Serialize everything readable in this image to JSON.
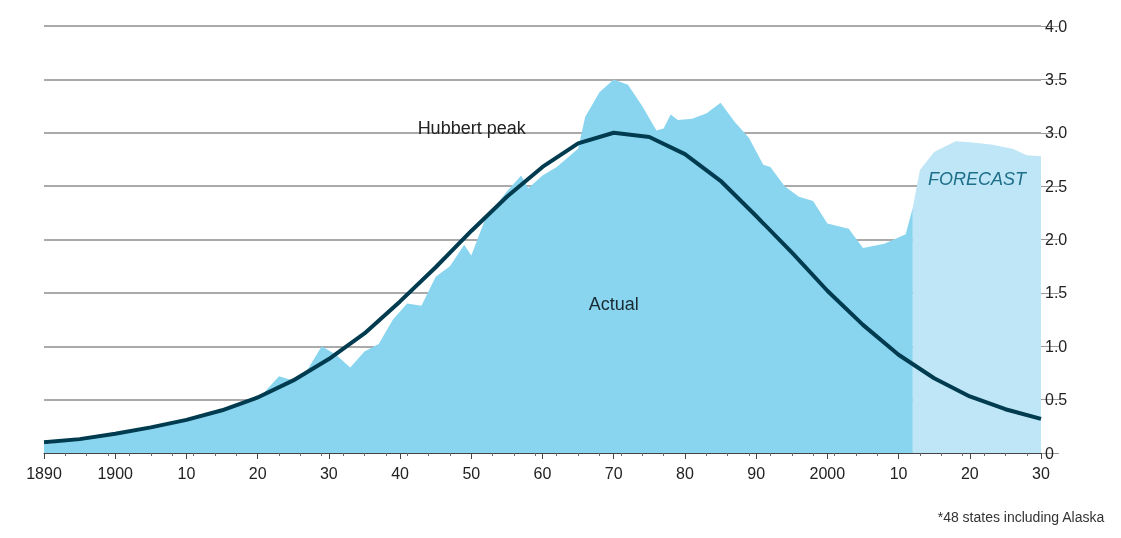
{
  "chart_data": {
    "type": "area",
    "xlim": [
      1890,
      2030
    ],
    "xticks": [
      {
        "value": 1890,
        "label": "1890"
      },
      {
        "value": 1900,
        "label": "1900"
      },
      {
        "value": 1910,
        "label": "10"
      },
      {
        "value": 1920,
        "label": "20"
      },
      {
        "value": 1930,
        "label": "30"
      },
      {
        "value": 1940,
        "label": "40"
      },
      {
        "value": 1950,
        "label": "50"
      },
      {
        "value": 1960,
        "label": "60"
      },
      {
        "value": 1970,
        "label": "70"
      },
      {
        "value": 1980,
        "label": "80"
      },
      {
        "value": 1990,
        "label": "90"
      },
      {
        "value": 2000,
        "label": "2000"
      },
      {
        "value": 2010,
        "label": "10"
      },
      {
        "value": 2020,
        "label": "20"
      },
      {
        "value": 2030,
        "label": "30"
      }
    ],
    "ylim": [
      0,
      4
    ],
    "yticks": [
      0,
      {
        "value": 0.5,
        "label": "0.5"
      },
      {
        "value": 1,
        "label": "1.0"
      },
      {
        "value": 1.5,
        "label": "1.5"
      },
      {
        "value": 2,
        "label": "2.0"
      },
      {
        "value": 2.5,
        "label": "2.5"
      },
      {
        "value": 3,
        "label": "3.0"
      },
      {
        "value": 3.5,
        "label": "3.5"
      },
      {
        "value": 4,
        "label": "4.0"
      }
    ],
    "grid": "y",
    "series": [
      {
        "name": "Actual",
        "color": "#89d5f0",
        "x": [
          1890,
          1900,
          1910,
          1920,
          1923,
          1925,
          1927,
          1929,
          1931,
          1933,
          1935,
          1937,
          1939,
          1941,
          1943,
          1945,
          1947,
          1949,
          1950,
          1952,
          1955,
          1957,
          1958,
          1960,
          1962,
          1965,
          1966,
          1968,
          1970,
          1972,
          1974,
          1976,
          1977,
          1978,
          1979,
          1981,
          1983,
          1985,
          1987,
          1989,
          1991,
          1992,
          1994,
          1996,
          1998,
          2000,
          2003,
          2005,
          2008,
          2011,
          2012
        ],
        "values": [
          0.08,
          0.17,
          0.3,
          0.5,
          0.72,
          0.68,
          0.78,
          1.0,
          0.92,
          0.8,
          0.95,
          1.02,
          1.25,
          1.4,
          1.38,
          1.65,
          1.75,
          1.95,
          1.85,
          2.2,
          2.45,
          2.6,
          2.48,
          2.6,
          2.68,
          2.85,
          3.15,
          3.38,
          3.5,
          3.45,
          3.25,
          3.02,
          3.04,
          3.17,
          3.12,
          3.13,
          3.18,
          3.28,
          3.1,
          2.95,
          2.7,
          2.68,
          2.5,
          2.4,
          2.36,
          2.15,
          2.1,
          1.92,
          1.96,
          2.05,
          2.3
        ]
      },
      {
        "name": "FORECAST",
        "color": "#bfe6f6",
        "x": [
          2012,
          2013,
          2015,
          2018,
          2020,
          2023,
          2026,
          2028,
          2030
        ],
        "values": [
          2.3,
          2.65,
          2.82,
          2.92,
          2.91,
          2.89,
          2.85,
          2.79,
          2.78
        ]
      },
      {
        "name": "Hubbert peak",
        "type": "line",
        "color": "#003b4f",
        "x": [
          1890,
          1895,
          1900,
          1905,
          1910,
          1915,
          1920,
          1925,
          1930,
          1935,
          1940,
          1945,
          1950,
          1955,
          1960,
          1965,
          1970,
          1975,
          1980,
          1985,
          1990,
          1995,
          2000,
          2005,
          2010,
          2015,
          2020,
          2025,
          2030
        ],
        "values": [
          0.1,
          0.13,
          0.18,
          0.24,
          0.31,
          0.4,
          0.52,
          0.68,
          0.88,
          1.12,
          1.42,
          1.74,
          2.08,
          2.4,
          2.68,
          2.9,
          3.0,
          2.96,
          2.8,
          2.55,
          2.22,
          1.88,
          1.52,
          1.2,
          0.92,
          0.7,
          0.53,
          0.41,
          0.32
        ]
      }
    ],
    "annotations": [
      "*48 states including Alaska"
    ]
  }
}
